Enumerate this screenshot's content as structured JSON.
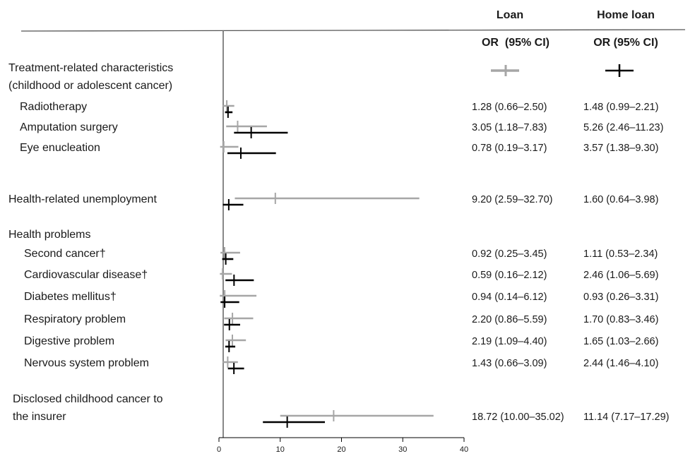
{
  "chart_data": {
    "type": "forest",
    "xlim": [
      0,
      40
    ],
    "xticks": [
      "0",
      "10",
      "20",
      "30",
      "40"
    ],
    "columns": {
      "loan": "Loan",
      "home_loan": "Home loan"
    },
    "subheaders": {
      "loan": "OR  (95% CI)",
      "home_loan": "OR (95% CI)"
    },
    "colors": {
      "loan": "#a6a6a6",
      "home_loan": "#000000"
    },
    "rows": [
      {
        "label": "Treatment-related characteristics",
        "header": true,
        "legend": true
      },
      {
        "label": "(childhood or adolescent cancer)",
        "header": true
      },
      {
        "label": "Radiotherapy",
        "indent": 1,
        "loan": [
          1.28,
          0.66,
          2.5
        ],
        "home": [
          1.48,
          0.99,
          2.21
        ],
        "loan_text": "1.28 (0.66–2.50)",
        "home_text": "1.48 (0.99–2.21)"
      },
      {
        "label": "Amputation surgery",
        "indent": 1,
        "loan": [
          3.05,
          1.18,
          7.83
        ],
        "home": [
          5.26,
          2.46,
          11.23
        ],
        "loan_text": "3.05 (1.18–7.83)",
        "home_text": "5.26 (2.46–11.23)"
      },
      {
        "label": "Eye enucleation",
        "indent": 1,
        "loan": [
          0.78,
          0.19,
          3.17
        ],
        "home": [
          3.57,
          1.38,
          9.3
        ],
        "loan_text": "0.78 (0.19–3.17)",
        "home_text": "3.57 (1.38–9.30)"
      },
      {
        "label": "Health-related unemployment",
        "indent": 0,
        "loan": [
          9.2,
          2.59,
          32.7
        ],
        "home": [
          1.6,
          0.64,
          3.98
        ],
        "loan_text": "9.20 (2.59–32.70)",
        "home_text": "1.60 (0.64–3.98)"
      },
      {
        "label": "Health problems",
        "header": true
      },
      {
        "label": "Second cancer†",
        "indent": 2,
        "loan": [
          0.92,
          0.25,
          3.45
        ],
        "home": [
          1.11,
          0.53,
          2.34
        ],
        "loan_text": "0.92 (0.25–3.45)",
        "home_text": "1.11 (0.53–2.34)"
      },
      {
        "label": "Cardiovascular disease†",
        "indent": 2,
        "loan": [
          0.59,
          0.16,
          2.12
        ],
        "home": [
          2.46,
          1.06,
          5.69
        ],
        "loan_text": "0.59 (0.16–2.12)",
        "home_text": "2.46 (1.06–5.69)"
      },
      {
        "label": "Diabetes mellitus†",
        "indent": 2,
        "loan": [
          0.94,
          0.14,
          6.12
        ],
        "home": [
          0.93,
          0.26,
          3.31
        ],
        "loan_text": "0.94 (0.14–6.12)",
        "home_text": "0.93 (0.26–3.31)"
      },
      {
        "label": "Respiratory problem",
        "indent": 2,
        "loan": [
          2.2,
          0.86,
          5.59
        ],
        "home": [
          1.7,
          0.83,
          3.46
        ],
        "loan_text": "2.20 (0.86–5.59)",
        "home_text": "1.70 (0.83–3.46)"
      },
      {
        "label": "Digestive problem",
        "indent": 2,
        "loan": [
          2.19,
          1.09,
          4.4
        ],
        "home": [
          1.65,
          1.03,
          2.66
        ],
        "loan_text": "2.19 (1.09–4.40)",
        "home_text": "1.65 (1.03–2.66)"
      },
      {
        "label": "Nervous system problem",
        "indent": 2,
        "loan": [
          1.43,
          0.66,
          3.09
        ],
        "home": [
          2.44,
          1.46,
          4.1
        ],
        "loan_text": "1.43 (0.66–3.09)",
        "home_text": "2.44 (1.46–4.10)"
      },
      {
        "label": "Disclosed childhood cancer to",
        "header": true,
        "indent": 0.5
      },
      {
        "label": "the insurer",
        "indent": 0.5,
        "loan": [
          18.72,
          10.0,
          35.02
        ],
        "home": [
          11.14,
          7.17,
          17.29
        ],
        "loan_text": "18.72 (10.00–35.02)",
        "home_text": "11.14 (7.17–17.29)"
      }
    ]
  }
}
